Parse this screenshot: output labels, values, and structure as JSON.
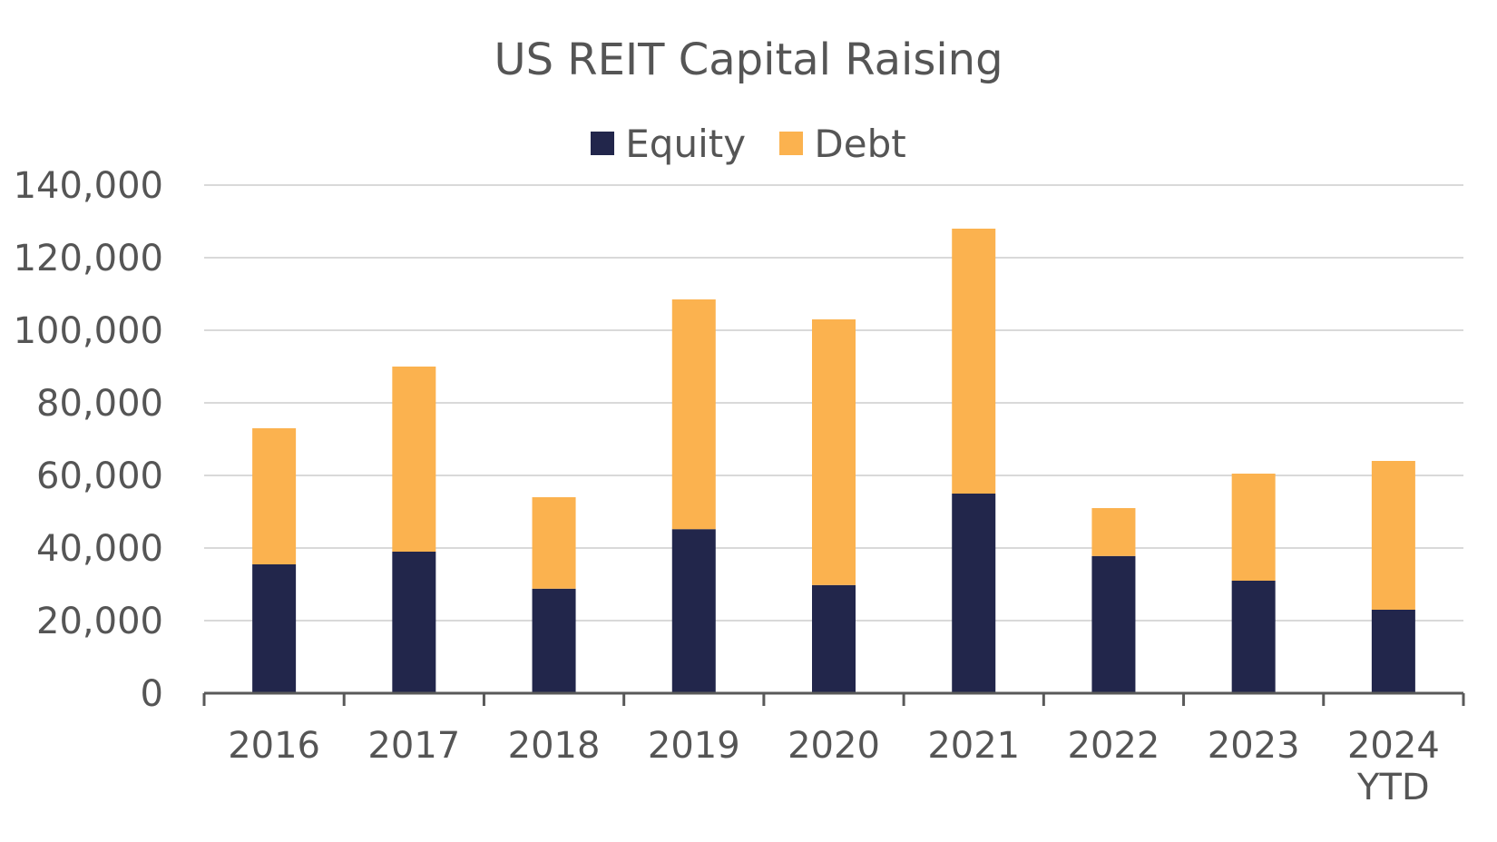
{
  "chart_data": {
    "type": "bar",
    "stacked": true,
    "title": "US REIT Capital Raising",
    "xlabel": "",
    "ylabel": "",
    "categories": [
      [
        "2016"
      ],
      [
        "2017"
      ],
      [
        "2018"
      ],
      [
        "2019"
      ],
      [
        "2020"
      ],
      [
        "2021"
      ],
      [
        "2022"
      ],
      [
        "2023"
      ],
      [
        "2024",
        "YTD"
      ]
    ],
    "series": [
      {
        "name": "Equity",
        "color": "#22264b",
        "values": [
          35500,
          39000,
          28800,
          45200,
          29800,
          55000,
          37800,
          31000,
          23000
        ]
      },
      {
        "name": "Debt",
        "color": "#fbb24f",
        "values": [
          37500,
          51000,
          25200,
          63300,
          73200,
          73000,
          13200,
          29500,
          41000
        ]
      }
    ],
    "ylim": [
      0,
      140000
    ],
    "yticks": [
      "0",
      "20,000",
      "40,000",
      "60,000",
      "80,000",
      "100,000",
      "120,000",
      "140,000"
    ],
    "grid": true,
    "legend": "top-center"
  }
}
